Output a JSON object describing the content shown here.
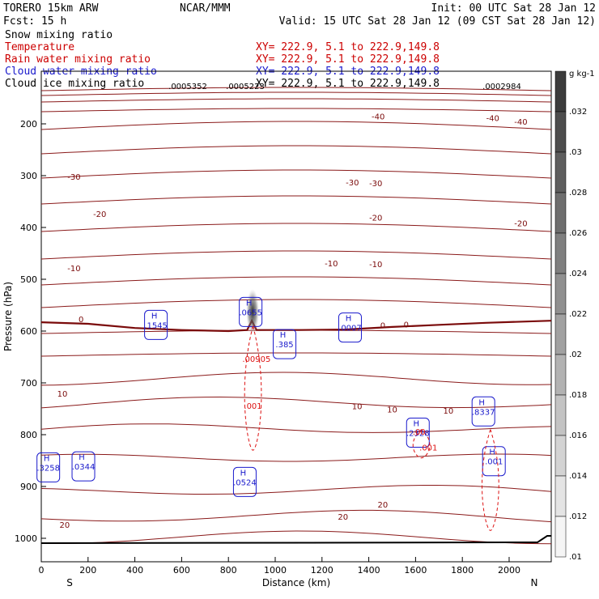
{
  "header": {
    "model": "TORERO   15km ARW",
    "center": "NCAR/MMM",
    "init": "Init: 00 UTC Sat 28 Jan 12",
    "fcst": "Fcst:   15 h",
    "valid": "Valid: 15 UTC Sat 28 Jan 12 (09 CST Sat 28 Jan 12)"
  },
  "fields": [
    {
      "name": "Snow mixing ratio",
      "xsec": "",
      "color": "#000000"
    },
    {
      "name": "Temperature",
      "xsec": "XY= 222.9,  5.1 to 222.9,149.8",
      "color": "#cc0000"
    },
    {
      "name": "Rain water mixing ratio",
      "xsec": "XY= 222.9,  5.1 to 222.9,149.8",
      "color": "#cc0000"
    },
    {
      "name": "Cloud water mixing ratio",
      "xsec": "XY= 222.9,  5.1 to 222.9,149.8",
      "color": "#1a1acc"
    },
    {
      "name": "Cloud ice mixing ratio",
      "xsec": "XY= 222.9,  5.1 to 222.9,149.8",
      "color": "#000000"
    }
  ],
  "top_row_values": [
    ".0005352",
    ".0005223",
    ".0002984"
  ],
  "chart_data": {
    "type": "contour",
    "xlabel": "Distance (km)",
    "ylabel": "Pressure (hPa)",
    "xlim": [
      0,
      2180
    ],
    "ylim": [
      1050,
      120
    ],
    "xticks": [
      0,
      200,
      400,
      600,
      800,
      1000,
      1200,
      1400,
      1600,
      1800,
      2000
    ],
    "yticks": [
      200,
      300,
      400,
      500,
      600,
      700,
      800,
      900,
      1000
    ],
    "end_labels": {
      "left": "S",
      "right": "N"
    },
    "colorbar": {
      "unit": "g kg-1",
      "ticks": [
        ".032",
        ".03",
        ".028",
        ".026",
        ".024",
        ".022",
        ".02",
        ".018",
        ".016",
        ".014",
        ".012",
        ".01"
      ]
    },
    "temperature_labels": [
      {
        "x": 1930,
        "p": 190,
        "text": "-40"
      },
      {
        "x": 1440,
        "p": 187,
        "text": "-40"
      },
      {
        "x": 2050,
        "p": 197,
        "text": "-40"
      },
      {
        "x": 140,
        "p": 303,
        "text": "-30"
      },
      {
        "x": 1330,
        "p": 314,
        "text": "-30"
      },
      {
        "x": 1430,
        "p": 316,
        "text": "-30"
      },
      {
        "x": 250,
        "p": 375,
        "text": "-20"
      },
      {
        "x": 1430,
        "p": 382,
        "text": "-20"
      },
      {
        "x": 2050,
        "p": 393,
        "text": "-20"
      },
      {
        "x": 140,
        "p": 480,
        "text": "-10"
      },
      {
        "x": 1240,
        "p": 470,
        "text": "-10"
      },
      {
        "x": 1430,
        "p": 472,
        "text": "-10"
      },
      {
        "x": 170,
        "p": 578,
        "text": "0"
      },
      {
        "x": 1460,
        "p": 590,
        "text": "0"
      },
      {
        "x": 1560,
        "p": 588,
        "text": "0"
      },
      {
        "x": 90,
        "p": 722,
        "text": "10"
      },
      {
        "x": 1350,
        "p": 746,
        "text": "10"
      },
      {
        "x": 1500,
        "p": 752,
        "text": "10"
      },
      {
        "x": 1740,
        "p": 755,
        "text": "10"
      },
      {
        "x": 100,
        "p": 975,
        "text": "20"
      },
      {
        "x": 1290,
        "p": 959,
        "text": "20"
      },
      {
        "x": 1460,
        "p": 936,
        "text": "20"
      }
    ],
    "cloud_water_maxima": [
      {
        "x": 490,
        "p": 585,
        "value": ".1545"
      },
      {
        "x": 895,
        "p": 560,
        "value": ".0655"
      },
      {
        "x": 1040,
        "p": 622,
        "value": ".385"
      },
      {
        "x": 1320,
        "p": 590,
        "value": ".0007"
      },
      {
        "x": 30,
        "p": 860,
        "value": ".3258"
      },
      {
        "x": 180,
        "p": 858,
        "value": ".0344"
      },
      {
        "x": 870,
        "p": 888,
        "value": ".0524"
      },
      {
        "x": 1890,
        "p": 752,
        "value": ".8337"
      },
      {
        "x": 1610,
        "p": 793,
        "value": ".2328"
      },
      {
        "x": 1935,
        "p": 848,
        "value": ".001"
      }
    ],
    "rain_water_labels": [
      {
        "x": 920,
        "p": 655,
        "value": ".00905"
      },
      {
        "x": 905,
        "p": 745,
        "value": ".001"
      },
      {
        "x": 1655,
        "p": 826,
        "value": ".001"
      },
      {
        "x": 1615,
        "p": 795,
        "value": ".00"
      }
    ],
    "snow_max": {
      "x": 900,
      "p": 550,
      "value": ".0655"
    }
  }
}
